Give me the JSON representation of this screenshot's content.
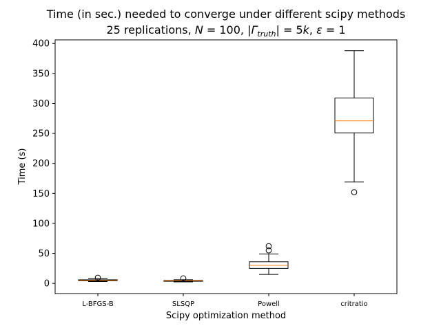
{
  "chart_data": {
    "type": "box",
    "title_line1": "Time (in sec.) needed to converge under different scipy methods",
    "title_line2": {
      "prefix": "25 replications, ",
      "n_var": "N",
      "n_val": " = 100, |",
      "gamma": "Γ",
      "gamma_sub": "truth",
      "gamma_val": "| = 5",
      "k_var": "k",
      "sep": ", ",
      "eps": "ε",
      "eps_val": " = 1"
    },
    "xlabel": "Scipy optimization method",
    "ylabel": "Time (s)",
    "ylim": [
      -17,
      406
    ],
    "yticks": [
      0,
      50,
      100,
      150,
      200,
      250,
      300,
      350,
      400
    ],
    "categories": [
      "L-BFGS-B",
      "SLSQP",
      "Powell",
      "critratio"
    ],
    "boxes": [
      {
        "name": "L-BFGS-B",
        "whisker_low": 3.0,
        "q1": 4.2,
        "median": 5.2,
        "q3": 6.0,
        "whisker_high": 8.0,
        "outliers": [
          9.5
        ]
      },
      {
        "name": "SLSQP",
        "whisker_low": 2.5,
        "q1": 3.5,
        "median": 4.2,
        "q3": 5.0,
        "whisker_high": 6.0,
        "outliers": [
          8.5
        ]
      },
      {
        "name": "Powell",
        "whisker_low": 15,
        "q1": 25,
        "median": 30,
        "q3": 36,
        "whisker_high": 49,
        "outliers": [
          55,
          62
        ]
      },
      {
        "name": "critratio",
        "whisker_low": 169,
        "q1": 251,
        "median": 271,
        "q3": 309,
        "whisker_high": 388,
        "outliers": [
          152
        ]
      }
    ],
    "colors": {
      "box": "#000000",
      "median": "#ff7f0e",
      "background": "#ffffff"
    },
    "grid": false,
    "legend": "none"
  }
}
